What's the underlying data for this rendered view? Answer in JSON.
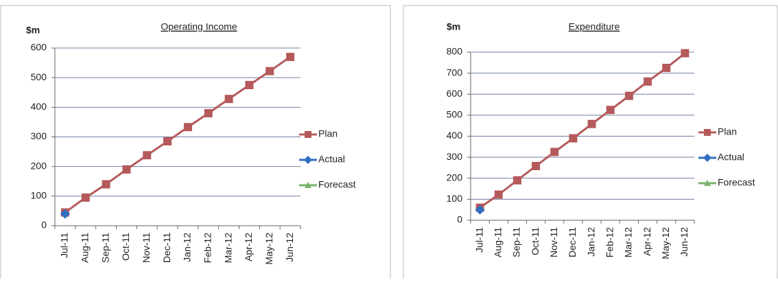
{
  "chart_data": [
    {
      "type": "line",
      "title": "Operating Income",
      "y_label": "$m",
      "categories": [
        "Jul-11",
        "Aug-11",
        "Sep-11",
        "Oct-11",
        "Nov-11",
        "Dec-11",
        "Jan-12",
        "Feb-12",
        "Mar-12",
        "Apr-12",
        "May-12",
        "Jun-12"
      ],
      "series": [
        {
          "name": "Plan",
          "color": "#b5595b",
          "marker": "square",
          "values": [
            45,
            95,
            140,
            190,
            238,
            285,
            333,
            380,
            428,
            475,
            522,
            570
          ]
        },
        {
          "name": "Actual",
          "color": "#2f6fc2",
          "marker": "diamond",
          "values": [
            40,
            null,
            null,
            null,
            null,
            null,
            null,
            null,
            null,
            null,
            null,
            null
          ]
        },
        {
          "name": "Forecast",
          "color": "#7ab36b",
          "marker": "triangle",
          "values": [
            null,
            null,
            null,
            null,
            null,
            null,
            null,
            null,
            null,
            null,
            null,
            null
          ]
        }
      ],
      "ylim": [
        0,
        600
      ],
      "yticks": [
        0,
        100,
        200,
        300,
        400,
        500,
        600
      ],
      "grid": true,
      "legend": "right"
    },
    {
      "type": "line",
      "title": "Expenditure",
      "y_label": "$m",
      "categories": [
        "Jul-11",
        "Aug-11",
        "Sep-11",
        "Oct-11",
        "Nov-11",
        "Dec-11",
        "Jan-12",
        "Feb-12",
        "Mar-12",
        "Apr-12",
        "May-12",
        "Jun-12"
      ],
      "series": [
        {
          "name": "Plan",
          "color": "#b5595b",
          "marker": "square",
          "values": [
            60,
            122,
            190,
            258,
            325,
            390,
            458,
            525,
            592,
            660,
            725,
            795
          ]
        },
        {
          "name": "Actual",
          "color": "#2f6fc2",
          "marker": "diamond",
          "values": [
            50,
            null,
            null,
            null,
            null,
            null,
            null,
            null,
            null,
            null,
            null,
            null
          ]
        },
        {
          "name": "Forecast",
          "color": "#7ab36b",
          "marker": "triangle",
          "values": [
            null,
            null,
            null,
            null,
            null,
            null,
            null,
            null,
            null,
            null,
            null,
            null
          ]
        }
      ],
      "ylim": [
        0,
        800
      ],
      "yticks": [
        0,
        100,
        200,
        300,
        400,
        500,
        600,
        700,
        800
      ],
      "grid": true,
      "legend": "right"
    }
  ]
}
